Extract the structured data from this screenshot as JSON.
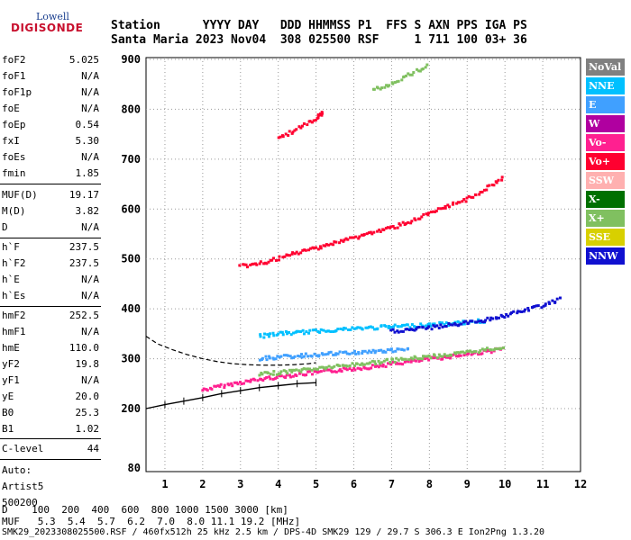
{
  "logo": {
    "line1": "Lowell",
    "line2": "DIGISONDE"
  },
  "header": {
    "line1": "Station      YYYY DAY   DDD HHMMSS P1  FFS S AXN PPS IGA PS",
    "line2": "Santa Maria 2023 Nov04  308 025500 RSF     1 711 100 03+ 36"
  },
  "params": [
    {
      "k": "foF2",
      "v": "5.025"
    },
    {
      "k": "foF1",
      "v": "N/A"
    },
    {
      "k": "foF1p",
      "v": "N/A"
    },
    {
      "k": "foE",
      "v": "N/A"
    },
    {
      "k": "foEp",
      "v": "0.54"
    },
    {
      "k": "fxI",
      "v": "5.30"
    },
    {
      "k": "foEs",
      "v": "N/A"
    },
    {
      "k": "fmin",
      "v": "1.85"
    },
    {
      "k": "MUF(D)",
      "v": "19.17"
    },
    {
      "k": "M(D)",
      "v": "3.82"
    },
    {
      "k": "D",
      "v": "N/A"
    },
    {
      "k": "h`F",
      "v": "237.5"
    },
    {
      "k": "h`F2",
      "v": "237.5"
    },
    {
      "k": "h`E",
      "v": "N/A"
    },
    {
      "k": "h`Es",
      "v": "N/A"
    },
    {
      "k": "hmF2",
      "v": "252.5"
    },
    {
      "k": "hmF1",
      "v": "N/A"
    },
    {
      "k": "hmE",
      "v": "110.0"
    },
    {
      "k": "yF2",
      "v": "19.8"
    },
    {
      "k": "yF1",
      "v": "N/A"
    },
    {
      "k": "yE",
      "v": "20.0"
    },
    {
      "k": "B0",
      "v": "25.3"
    },
    {
      "k": "B1",
      "v": "1.02"
    },
    {
      "k": "C-level",
      "v": "44"
    }
  ],
  "auto": {
    "line1": "Auto:",
    "line2": "Artist5",
    "line3": "500200"
  },
  "legend": [
    {
      "label": "NoVal",
      "color": "#808080"
    },
    {
      "label": "NNE",
      "color": "#00c0ff"
    },
    {
      "label": "E",
      "color": "#40a0ff"
    },
    {
      "label": "W",
      "color": "#b000a0"
    },
    {
      "label": "Vo-",
      "color": "#ff2090"
    },
    {
      "label": "Vo+",
      "color": "#ff0030"
    },
    {
      "label": "SSW",
      "color": "#ffb0b0"
    },
    {
      "label": "X-",
      "color": "#007000"
    },
    {
      "label": "X+",
      "color": "#80c060"
    },
    {
      "label": "SSE",
      "color": "#d8d000"
    },
    {
      "label": "NNW",
      "color": "#1010d0"
    }
  ],
  "footer": {
    "d_line": "D    100  200  400  600  800 1000 1500 3000 [km]",
    "muf_line": "MUF   5.3  5.4  5.7  6.2  7.0  8.0 11.1 19.2 [MHz]",
    "file_line": "SMK29_2023308025500.RSF / 460fx512h 25 kHz 2.5 km / DPS-4D SMK29 129 / 29.7 S 306.3 E Ion2Png 1.3.20"
  },
  "chart_data": {
    "type": "scatter",
    "xlim": [
      0.5,
      12.0
    ],
    "ylim": [
      80,
      900
    ],
    "xticks": [
      "1",
      "2",
      "3",
      "4",
      "5",
      "6",
      "7",
      "8",
      "9",
      "10",
      "11",
      "12"
    ],
    "yticks": [
      "80",
      "200",
      "300",
      "400",
      "500",
      "600",
      "700",
      "800",
      "900"
    ],
    "series": [
      {
        "name": "Vo-",
        "x": [
          2.0,
          2.5,
          3.0,
          3.5,
          4.0,
          4.5,
          5.0,
          5.5,
          6.0,
          6.5,
          7.0,
          7.5,
          8.0,
          8.5,
          9.0,
          9.5,
          10.0
        ],
        "y": [
          237,
          245,
          252,
          258,
          264,
          268,
          272,
          276,
          280,
          284,
          289,
          294,
          299,
          304,
          309,
          314,
          320
        ]
      },
      {
        "name": "X+",
        "x": [
          3.5,
          4.0,
          4.5,
          5.0,
          5.5,
          6.0,
          6.5,
          7.0,
          7.5,
          8.0,
          8.5,
          9.0,
          9.5,
          10.0
        ],
        "y": [
          268,
          272,
          276,
          280,
          284,
          288,
          292,
          296,
          300,
          304,
          308,
          312,
          318,
          324
        ]
      },
      {
        "name": "NNE",
        "x": [
          3.5,
          4.0,
          4.5,
          5.0,
          5.5,
          6.0,
          6.5,
          7.0,
          7.5,
          8.0,
          8.5,
          9.0,
          9.5
        ],
        "y": [
          345,
          350,
          352,
          355,
          358,
          360,
          362,
          364,
          366,
          368,
          370,
          373,
          376
        ]
      },
      {
        "name": "E",
        "x": [
          3.5,
          4.0,
          4.5,
          5.0,
          5.5,
          6.0,
          6.5,
          7.0,
          7.5
        ],
        "y": [
          300,
          303,
          305,
          308,
          310,
          312,
          314,
          316,
          318
        ]
      },
      {
        "name": "NNW",
        "x": [
          7.0,
          7.5,
          8.0,
          8.5,
          9.0,
          9.5,
          10.0,
          10.5,
          11.0,
          11.5
        ],
        "y": [
          355,
          358,
          362,
          367,
          372,
          378,
          386,
          396,
          407,
          420
        ]
      },
      {
        "name": "Vo+",
        "x": [
          3.0,
          3.5,
          4.0,
          4.5,
          5.0,
          5.5,
          6.0,
          6.5,
          7.0,
          7.5,
          8.0,
          8.5,
          9.0,
          9.5,
          10.0
        ],
        "y": [
          485,
          490,
          500,
          512,
          522,
          532,
          542,
          553,
          562,
          575,
          590,
          605,
          620,
          640,
          665
        ]
      },
      {
        "name": "Vo+",
        "x": [
          4.0,
          4.5,
          5.0,
          5.2
        ],
        "y": [
          742,
          760,
          780,
          795
        ]
      },
      {
        "name": "X+",
        "x": [
          6.5,
          7.0,
          7.5,
          8.0
        ],
        "y": [
          838,
          852,
          870,
          890
        ]
      }
    ],
    "profile": {
      "x": [
        0.5,
        1.0,
        1.5,
        2.0,
        2.5,
        3.0,
        3.5,
        4.0,
        4.5,
        5.0
      ],
      "y": [
        200,
        208,
        215,
        222,
        230,
        236,
        242,
        246,
        250,
        252
      ]
    },
    "dashed": {
      "x": [
        0.5,
        0.8,
        1.2,
        1.6,
        2.0,
        2.4,
        2.8,
        3.2,
        3.6,
        4.0,
        4.4,
        4.8,
        5.0
      ],
      "y": [
        345,
        330,
        318,
        308,
        300,
        294,
        290,
        288,
        287,
        287,
        288,
        290,
        292
      ]
    }
  }
}
